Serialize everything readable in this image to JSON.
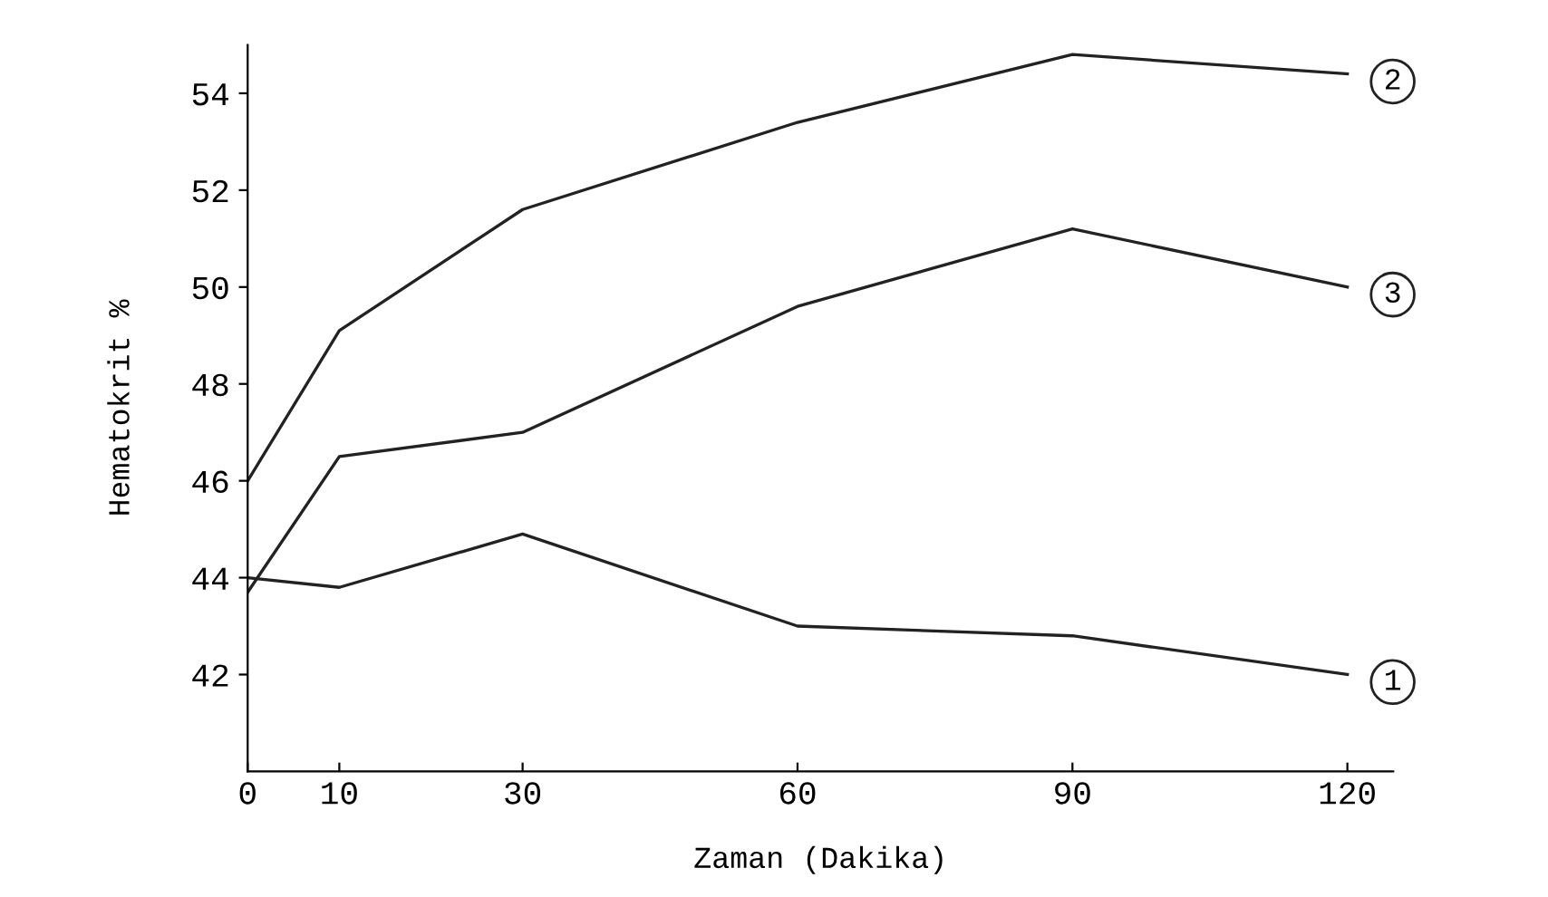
{
  "chart_data": {
    "type": "line",
    "xlabel": "Zaman (Dakika)",
    "ylabel": "Hematokrit %",
    "x": [
      0,
      10,
      30,
      60,
      90,
      120
    ],
    "series": [
      {
        "name": "1",
        "color": "#222222",
        "values": [
          44.0,
          43.8,
          44.9,
          43.0,
          42.8,
          42.0
        ]
      },
      {
        "name": "2",
        "color": "#222222",
        "values": [
          46.0,
          49.1,
          51.6,
          53.4,
          54.8,
          54.4
        ]
      },
      {
        "name": "3",
        "color": "#222222",
        "values": [
          43.7,
          46.5,
          47.0,
          49.6,
          51.2,
          50.0
        ]
      }
    ],
    "xlim": [
      0,
      125
    ],
    "xticks": [
      0,
      10,
      30,
      60,
      90,
      120
    ],
    "ylim": [
      40,
      55
    ],
    "yticks": [
      42,
      44,
      46,
      48,
      50,
      52,
      54
    ],
    "grid": false,
    "legend": false,
    "marker": "none",
    "line_style": "solid"
  }
}
